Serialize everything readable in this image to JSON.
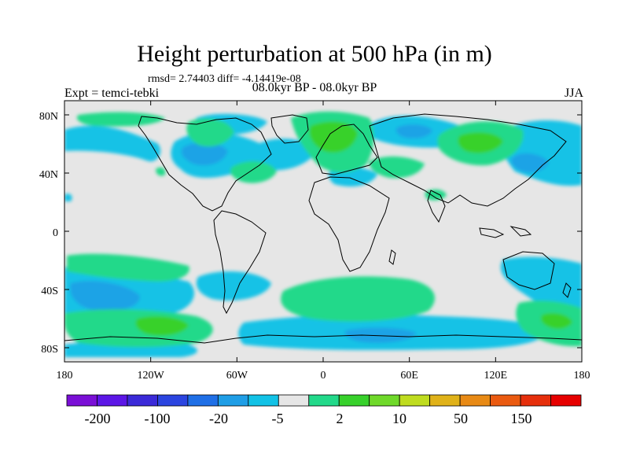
{
  "title": "Height perturbation at 500 hPa (in m)",
  "stats": "rmsd= 2.74403 diff= -4.14419e-08",
  "experiment": "Expt = temci-tebki",
  "period": "08.0kyr BP - 08.0kyr BP",
  "season": "JJA",
  "lat_ticks": [
    "80N",
    "40N",
    "0",
    "40S",
    "80S"
  ],
  "lon_ticks": [
    "180",
    "120W",
    "60W",
    "0",
    "60E",
    "120E",
    "180"
  ],
  "colorbar": {
    "labels": [
      "-200",
      "-100",
      "-20",
      "-5",
      "2",
      "10",
      "50",
      "150"
    ],
    "colors": [
      "#7a0fd6",
      "#5c16e6",
      "#3b2ad8",
      "#2b45e0",
      "#1f6fe6",
      "#1f9ee6",
      "#12c2e6",
      "#e6e6e6",
      "#22d98a",
      "#37d12b",
      "#6fd92a",
      "#bfdc1f",
      "#e0b219",
      "#e88a15",
      "#ea5a10",
      "#e62f0c",
      "#e60000"
    ]
  },
  "field_colors": {
    "background": "#e6e6e6",
    "neg_light": "#12c2e6",
    "neg_mid": "#1fa3e6",
    "pos_light": "#22d98a",
    "pos_mid": "#37d12b"
  }
}
